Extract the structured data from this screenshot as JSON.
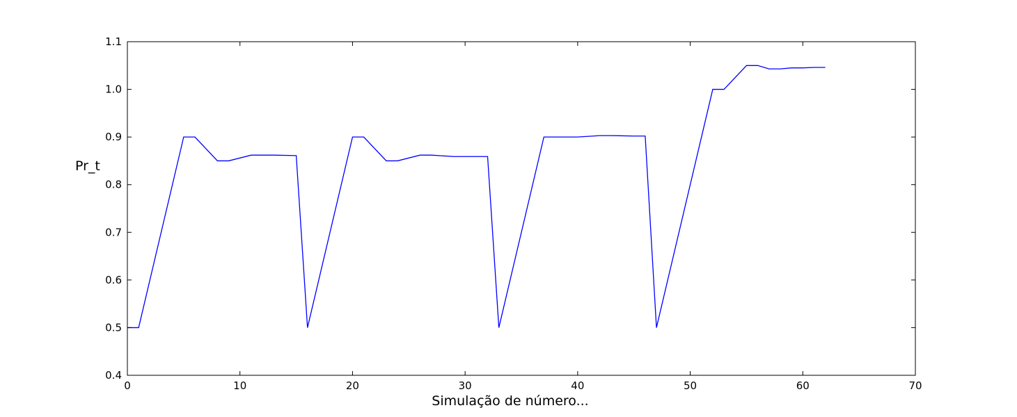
{
  "chart_data": {
    "type": "line",
    "title": "",
    "xlabel": "Simulação de número...",
    "ylabel": "Pr_t",
    "xlim": [
      0,
      70
    ],
    "ylim": [
      0.4,
      1.1
    ],
    "xticks": [
      0,
      10,
      20,
      30,
      40,
      50,
      60,
      70
    ],
    "yticks": [
      0.4,
      0.5,
      0.6,
      0.7,
      0.8,
      0.9,
      1.0,
      1.1
    ],
    "xtick_labels": [
      "0",
      "10",
      "20",
      "30",
      "40",
      "50",
      "60",
      "70"
    ],
    "ytick_labels": [
      "0.4",
      "0.5",
      "0.6",
      "0.7",
      "0.8",
      "0.9",
      "1.0",
      "1.1"
    ],
    "grid": false,
    "legend": "none",
    "series": [
      {
        "color": "#0000ff",
        "x": [
          0,
          1,
          5,
          6,
          8,
          9,
          11,
          12,
          13,
          15,
          16,
          20,
          21,
          23,
          24,
          26,
          27,
          29,
          30,
          32,
          33,
          37,
          38,
          40,
          42,
          43,
          45,
          46,
          47,
          52,
          53,
          55,
          56,
          57,
          58,
          59,
          60,
          61,
          62
        ],
        "y": [
          0.5,
          0.5,
          0.9,
          0.9,
          0.85,
          0.85,
          0.862,
          0.862,
          0.862,
          0.861,
          0.5,
          0.9,
          0.9,
          0.85,
          0.85,
          0.862,
          0.862,
          0.859,
          0.859,
          0.859,
          0.5,
          0.9,
          0.9,
          0.9,
          0.903,
          0.903,
          0.902,
          0.902,
          0.5,
          1.0,
          1.0,
          1.05,
          1.05,
          1.043,
          1.043,
          1.045,
          1.045,
          1.046,
          1.046
        ]
      }
    ]
  }
}
